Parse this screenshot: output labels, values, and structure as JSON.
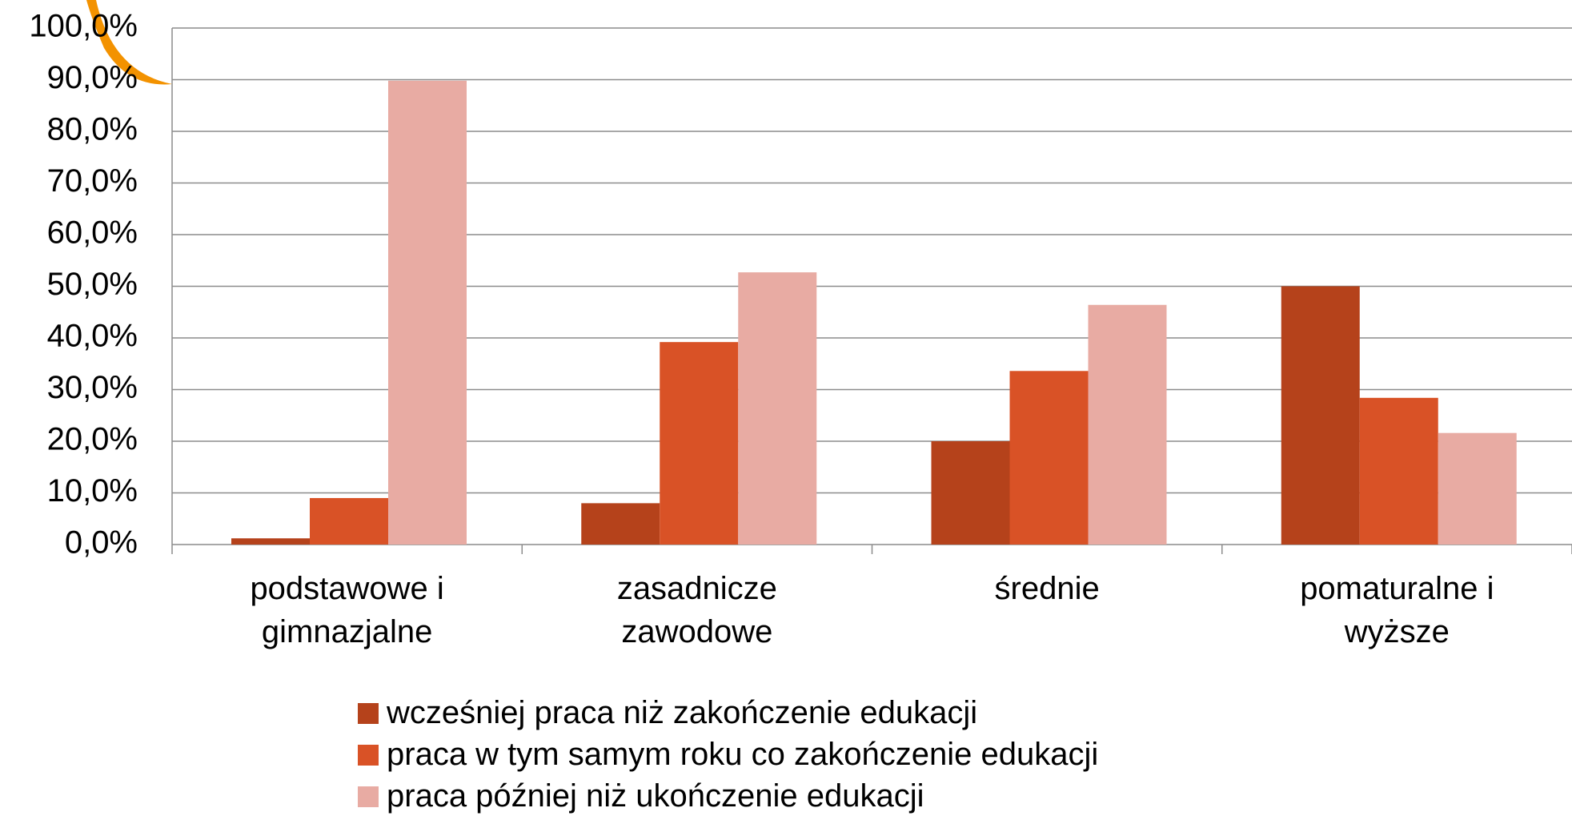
{
  "chart_data": {
    "type": "bar",
    "categories": [
      "podstawowe i gimnazjalne",
      "zasadnicze zawodowe",
      "średnie",
      "pomaturalne i wyższe"
    ],
    "series": [
      {
        "name": "wcześniej praca niż zakończenie edukacji",
        "color": "#b5421b",
        "values": [
          1.2,
          8.0,
          20.0,
          50.0
        ]
      },
      {
        "name": "praca w tym samym roku co zakończenie edukacji",
        "color": "#d95226",
        "values": [
          9.0,
          39.2,
          33.6,
          28.4
        ]
      },
      {
        "name": "praca później niż ukończenie edukacji",
        "color": "#e8aba3",
        "values": [
          89.8,
          52.7,
          46.4,
          21.6
        ]
      }
    ],
    "ylim": [
      0,
      100
    ],
    "yticks": [
      {
        "value": 0,
        "label": "0,0%"
      },
      {
        "value": 10,
        "label": "10,0%"
      },
      {
        "value": 20,
        "label": "20,0%"
      },
      {
        "value": 30,
        "label": "30,0%"
      },
      {
        "value": 40,
        "label": "40,0%"
      },
      {
        "value": 50,
        "label": "50,0%"
      },
      {
        "value": 60,
        "label": "60,0%"
      },
      {
        "value": 70,
        "label": "70,0%"
      },
      {
        "value": 80,
        "label": "80,0%"
      },
      {
        "value": 90,
        "label": "90,0%"
      },
      {
        "value": 100,
        "label": "100,0%"
      }
    ],
    "grid": true,
    "legend": "bottom"
  }
}
